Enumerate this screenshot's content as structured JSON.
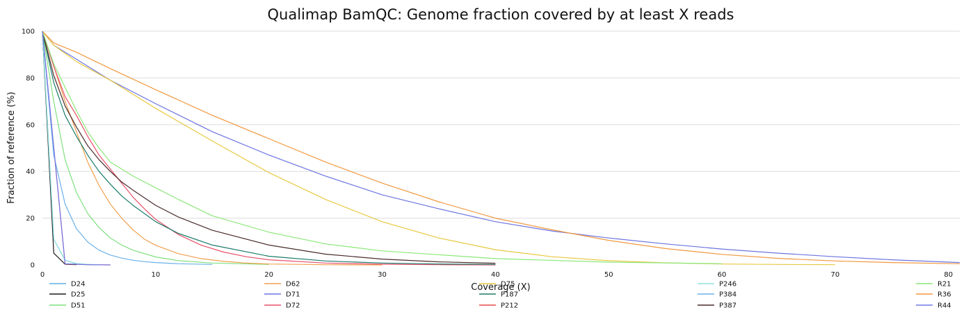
{
  "chart_data": {
    "type": "line",
    "title": "Qualimap BamQC: Genome fraction covered by at least X reads",
    "xlabel": "Coverage (X)",
    "ylabel": "Fraction of reference (%)",
    "xlim": [
      0,
      81
    ],
    "ylim": [
      0,
      100
    ],
    "xticks": [
      "0",
      "10",
      "20",
      "30",
      "40",
      "50",
      "60",
      "70",
      "80"
    ],
    "yticks": [
      "0",
      "20",
      "40",
      "60",
      "80",
      "100"
    ],
    "grid": "horizontal",
    "legend_position": "bottom",
    "series": [
      {
        "name": "D24",
        "color": "#5dade2",
        "x": [
          0,
          1,
          2,
          3,
          4,
          5
        ],
        "y": [
          100,
          11,
          2,
          0.5,
          0.2,
          0.1
        ]
      },
      {
        "name": "D25",
        "color": "#1a1a1a",
        "x": [
          0,
          1,
          2,
          3
        ],
        "y": [
          100,
          5,
          0.3,
          0.1
        ]
      },
      {
        "name": "D51",
        "color": "#7ee07e",
        "x": [
          0,
          1,
          2,
          3,
          4,
          5,
          6,
          7,
          8,
          10,
          12,
          15,
          20
        ],
        "y": [
          100,
          70,
          45,
          31,
          22,
          16,
          11.5,
          8.5,
          6.3,
          3.4,
          1.8,
          0.8,
          0.2
        ]
      },
      {
        "name": "D62",
        "color": "#f0a050",
        "x": [
          0,
          1,
          2,
          3,
          4,
          5,
          6,
          7,
          8,
          9,
          10,
          12,
          14,
          16,
          18,
          20,
          25,
          30
        ],
        "y": [
          100,
          85,
          70,
          57,
          44,
          34,
          26,
          20,
          15,
          11,
          8.4,
          4.8,
          2.7,
          1.5,
          0.8,
          0.4,
          0.1,
          0
        ]
      },
      {
        "name": "D71",
        "color": "#6c74e0",
        "x": [
          0,
          1,
          3,
          6,
          10,
          15,
          20,
          25,
          30,
          35,
          40,
          45,
          50,
          55,
          60,
          65,
          70,
          75,
          81
        ],
        "y": [
          100,
          94,
          88,
          79,
          69,
          57,
          47,
          38,
          30,
          24,
          18.5,
          14.5,
          11.5,
          9,
          6.8,
          5,
          3.5,
          2.2,
          1
        ]
      },
      {
        "name": "D72",
        "color": "#e8506a",
        "x": [
          0,
          1,
          2,
          3,
          4,
          5,
          6,
          7,
          8,
          9,
          10,
          12,
          14,
          16,
          18,
          20,
          25,
          30,
          35,
          40
        ],
        "y": [
          100,
          85,
          72,
          64,
          55,
          47,
          41,
          35,
          29,
          24,
          19.5,
          13,
          8.5,
          5.5,
          3.5,
          2.2,
          0.8,
          0.3,
          0.1,
          0
        ]
      },
      {
        "name": "D75",
        "color": "#e8c840",
        "x": [
          0,
          1,
          3,
          6,
          10,
          15,
          20,
          25,
          30,
          35,
          40,
          45,
          50,
          55,
          60,
          65,
          70
        ],
        "y": [
          100,
          94,
          87,
          79,
          67,
          53,
          39.5,
          28,
          18.5,
          11.5,
          6.5,
          3.5,
          1.8,
          0.9,
          0.4,
          0.2,
          0.1
        ]
      },
      {
        "name": "P187",
        "color": "#1a7a6a",
        "x": [
          0,
          1,
          2,
          3,
          4,
          5,
          6,
          7,
          8,
          10,
          12,
          15,
          20,
          25,
          30,
          35,
          40
        ],
        "y": [
          100,
          78,
          64,
          55,
          47,
          40,
          34.5,
          29.5,
          25.5,
          18.5,
          13.5,
          8.5,
          3.7,
          1.7,
          0.8,
          0.4,
          0.2
        ]
      },
      {
        "name": "P212",
        "color": "#e84848",
        "x": [
          0,
          2,
          4,
          6
        ],
        "y": [
          100,
          0.4,
          0.1,
          0
        ]
      },
      {
        "name": "P246",
        "color": "#90e0dc",
        "x": [
          0,
          1,
          2,
          3,
          4,
          5
        ],
        "y": [
          100,
          11,
          2,
          0.6,
          0.2,
          0.1
        ]
      },
      {
        "name": "P384",
        "color": "#6ab0e8",
        "x": [
          0,
          1,
          2,
          3,
          4,
          5,
          6,
          7,
          8,
          9,
          10,
          12,
          15
        ],
        "y": [
          100,
          47,
          26,
          15.5,
          9.8,
          6.3,
          4.2,
          2.9,
          2,
          1.4,
          1,
          0.5,
          0.2
        ]
      },
      {
        "name": "P387",
        "color": "#4a2a2a",
        "x": [
          0,
          1,
          2,
          3,
          4,
          5,
          6,
          7,
          8,
          10,
          12,
          15,
          20,
          25,
          30,
          35,
          40
        ],
        "y": [
          100,
          81,
          68,
          59,
          51,
          45,
          40,
          35.5,
          32,
          25.5,
          20.5,
          14.8,
          8.5,
          4.6,
          2.5,
          1.3,
          0.7
        ]
      },
      {
        "name": "R21",
        "color": "#8ae878",
        "x": [
          0,
          1,
          2,
          3,
          4,
          5,
          6,
          8,
          10,
          12,
          15,
          20,
          25,
          30,
          40,
          50,
          60
        ],
        "y": [
          100,
          86,
          76,
          66,
          57,
          50,
          44,
          38,
          33,
          28,
          21,
          14,
          9,
          6,
          2.7,
          1.2,
          0.5
        ]
      },
      {
        "name": "R36",
        "color": "#f09840",
        "x": [
          0,
          1,
          3,
          6,
          10,
          15,
          20,
          25,
          30,
          35,
          40,
          45,
          50,
          55,
          60,
          65,
          70,
          75,
          81
        ],
        "y": [
          100,
          95,
          91,
          84,
          75,
          64,
          54,
          44,
          35,
          27,
          20,
          15,
          10.5,
          7,
          4.5,
          2.8,
          1.7,
          1,
          0.5
        ]
      },
      {
        "name": "R44",
        "color": "#7078e8",
        "x": [
          0,
          2,
          4,
          6
        ],
        "y": [
          100,
          0.5,
          0.1,
          0
        ]
      }
    ]
  }
}
